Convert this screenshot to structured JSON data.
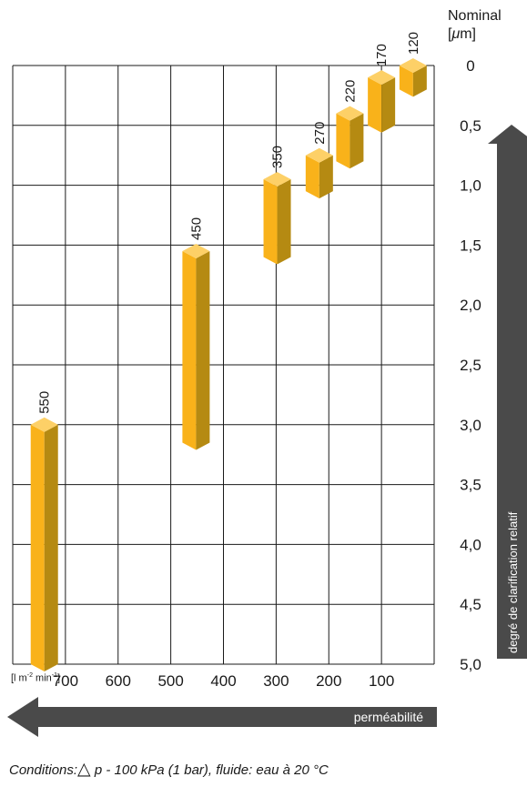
{
  "unit_title": {
    "line1": "Nominal",
    "line2_open": "[",
    "line2_mu": "μ",
    "line2_rest": "m]"
  },
  "x_unit": {
    "base": "[l m",
    "exp1": "-2",
    "mid": " min",
    "exp2": "-1",
    "close": "]"
  },
  "arrows": {
    "horizontal_label": "perméabilité",
    "vertical_label": "degré de clarification relatif",
    "color": "#4a4a4a"
  },
  "conditions": {
    "prefix": "Conditions:",
    "delta_symbol": "△",
    "text": " p - 100 kPa (1 bar), fluide: eau à 20 °C"
  },
  "chart_data": {
    "type": "bar",
    "x_axis": {
      "min": 0,
      "max": 800,
      "reversed": true,
      "ticks": [
        700,
        600,
        500,
        400,
        300,
        200,
        100
      ],
      "tick_labels": [
        "700",
        "600",
        "500",
        "400",
        "300",
        "200",
        "100"
      ]
    },
    "y_axis": {
      "min": 0,
      "max": 5.0,
      "reversed": true,
      "position": "right",
      "ticks": [
        0,
        0.5,
        1.0,
        1.5,
        2.0,
        2.5,
        3.0,
        3.5,
        4.0,
        4.5,
        5.0
      ],
      "tick_labels": [
        "0",
        "0,5",
        "1,0",
        "1,5",
        "2,0",
        "2,5",
        "3,0",
        "3,5",
        "4,0",
        "4,5",
        "5,0"
      ]
    },
    "grid": true,
    "bar_color_front": "#F9B21A",
    "bar_color_side": "#B58A12",
    "bar_color_top": "#FDD067",
    "series": [
      {
        "name": "550",
        "permeability": 740,
        "clarification_start": 3.0,
        "clarification_end": 5.0
      },
      {
        "name": "450",
        "permeability": 452,
        "clarification_start": 1.55,
        "clarification_end": 3.15
      },
      {
        "name": "350",
        "permeability": 298,
        "clarification_start": 0.95,
        "clarification_end": 1.6
      },
      {
        "name": "270",
        "permeability": 218,
        "clarification_start": 0.75,
        "clarification_end": 1.05
      },
      {
        "name": "220",
        "permeability": 160,
        "clarification_start": 0.4,
        "clarification_end": 0.8
      },
      {
        "name": "170",
        "permeability": 100,
        "clarification_start": 0.1,
        "clarification_end": 0.5
      },
      {
        "name": "120",
        "permeability": 40,
        "clarification_start": 0.0,
        "clarification_end": 0.2
      }
    ]
  }
}
